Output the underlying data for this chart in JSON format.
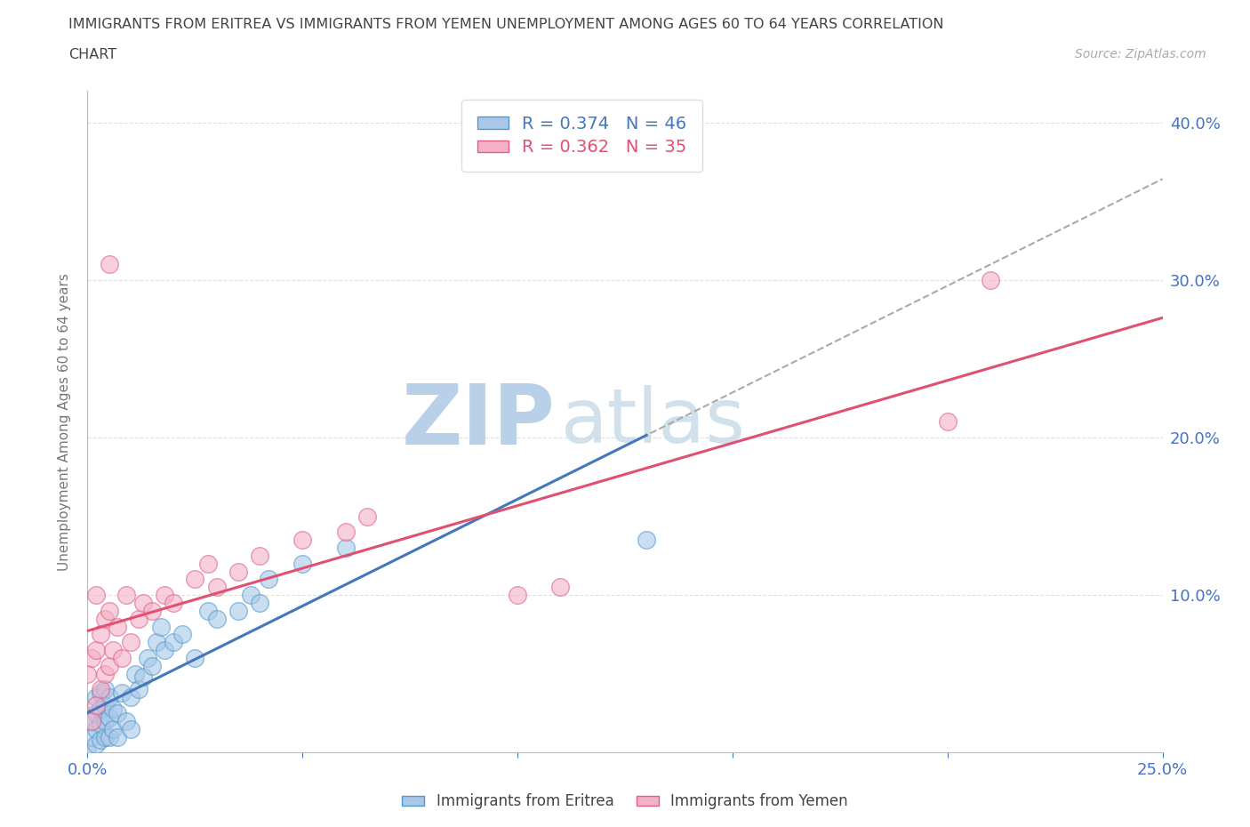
{
  "title_line1": "IMMIGRANTS FROM ERITREA VS IMMIGRANTS FROM YEMEN UNEMPLOYMENT AMONG AGES 60 TO 64 YEARS CORRELATION",
  "title_line2": "CHART",
  "source_text": "Source: ZipAtlas.com",
  "ylabel": "Unemployment Among Ages 60 to 64 years",
  "xlim": [
    0.0,
    0.25
  ],
  "ylim": [
    0.0,
    0.42
  ],
  "eritrea_color": "#a8c8e8",
  "eritrea_edge_color": "#5599cc",
  "eritrea_line_color": "#4477bb",
  "yemen_color": "#f4b0c8",
  "yemen_edge_color": "#e06080",
  "yemen_line_color": "#e05070",
  "tick_label_color": "#4472c4",
  "title_color": "#444444",
  "axis_label_color": "#777777",
  "grid_color": "#cccccc",
  "watermark_zip_color": "#b8d0e8",
  "watermark_atlas_color": "#c8dce8",
  "background_color": "#ffffff",
  "legend_eritrea_label": "R = 0.374   N = 46",
  "legend_yemen_label": "R = 0.362   N = 35",
  "eritrea_x": [
    0.0,
    0.001,
    0.001,
    0.002,
    0.002,
    0.002,
    0.002,
    0.003,
    0.003,
    0.003,
    0.003,
    0.004,
    0.004,
    0.004,
    0.004,
    0.005,
    0.005,
    0.005,
    0.006,
    0.006,
    0.007,
    0.007,
    0.008,
    0.009,
    0.01,
    0.01,
    0.011,
    0.012,
    0.013,
    0.014,
    0.015,
    0.016,
    0.017,
    0.018,
    0.02,
    0.022,
    0.025,
    0.028,
    0.03,
    0.035,
    0.038,
    0.04,
    0.042,
    0.05,
    0.06,
    0.13
  ],
  "eritrea_y": [
    0.0,
    0.01,
    0.02,
    0.005,
    0.015,
    0.025,
    0.035,
    0.008,
    0.018,
    0.028,
    0.038,
    0.01,
    0.02,
    0.03,
    0.04,
    0.01,
    0.022,
    0.035,
    0.015,
    0.028,
    0.01,
    0.025,
    0.038,
    0.02,
    0.015,
    0.035,
    0.05,
    0.04,
    0.048,
    0.06,
    0.055,
    0.07,
    0.08,
    0.065,
    0.07,
    0.075,
    0.06,
    0.09,
    0.085,
    0.09,
    0.1,
    0.095,
    0.11,
    0.12,
    0.13,
    0.135
  ],
  "yemen_x": [
    0.0,
    0.001,
    0.001,
    0.002,
    0.002,
    0.002,
    0.003,
    0.003,
    0.004,
    0.004,
    0.005,
    0.005,
    0.006,
    0.007,
    0.008,
    0.009,
    0.01,
    0.012,
    0.013,
    0.015,
    0.018,
    0.02,
    0.025,
    0.028,
    0.03,
    0.035,
    0.04,
    0.05,
    0.06,
    0.065,
    0.1,
    0.11,
    0.2,
    0.21,
    0.005
  ],
  "yemen_y": [
    0.05,
    0.02,
    0.06,
    0.03,
    0.065,
    0.1,
    0.04,
    0.075,
    0.05,
    0.085,
    0.055,
    0.09,
    0.065,
    0.08,
    0.06,
    0.1,
    0.07,
    0.085,
    0.095,
    0.09,
    0.1,
    0.095,
    0.11,
    0.12,
    0.105,
    0.115,
    0.125,
    0.135,
    0.14,
    0.15,
    0.1,
    0.105,
    0.21,
    0.3,
    0.31
  ]
}
